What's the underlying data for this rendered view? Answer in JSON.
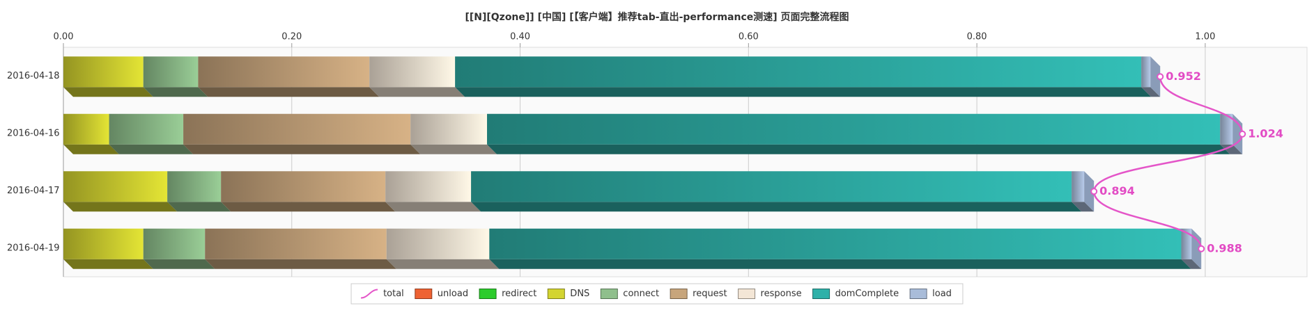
{
  "chart_data": {
    "type": "bar",
    "orientation": "horizontal",
    "stacked": true,
    "title": "[[N][Qzone]] [中国] [【客户端】推荐tab-直出-performance测速] 页面完整流程图",
    "categories": [
      "2016-04-18",
      "2016-04-16",
      "2016-04-17",
      "2016-04-19"
    ],
    "xlim": [
      0,
      1.08
    ],
    "xticks": [
      {
        "value": 0,
        "label": "0.00"
      },
      {
        "value": 0.2,
        "label": "0.20"
      },
      {
        "value": 0.4,
        "label": "0.40"
      },
      {
        "value": 0.6,
        "label": "0.60"
      },
      {
        "value": 0.8,
        "label": "0.80"
      },
      {
        "value": 1.0,
        "label": "1.00"
      }
    ],
    "grid": true,
    "legend": "bottom",
    "series": [
      {
        "name": "total",
        "type": "line",
        "color": "#e455c8",
        "values": [
          0.952,
          1.024,
          0.894,
          0.988
        ]
      },
      {
        "name": "unload",
        "color": "#ee6233",
        "values": [
          0,
          0,
          0,
          0
        ]
      },
      {
        "name": "redirect",
        "color": "#2ccc2c",
        "values": [
          0,
          0,
          0,
          0
        ]
      },
      {
        "name": "DNS",
        "color": "#d3d431",
        "values": [
          0.07,
          0.04,
          0.091,
          0.07
        ]
      },
      {
        "name": "connect",
        "color": "#8fbf8c",
        "values": [
          0.048,
          0.065,
          0.047,
          0.054
        ]
      },
      {
        "name": "request",
        "color": "#c7a57c",
        "values": [
          0.15,
          0.199,
          0.144,
          0.159
        ]
      },
      {
        "name": "response",
        "color": "#f3e6d6",
        "values": [
          0.075,
          0.067,
          0.075,
          0.09
        ]
      },
      {
        "name": "domComplete",
        "color": "#2fb1a9",
        "values": [
          0.601,
          0.642,
          0.526,
          0.606
        ]
      },
      {
        "name": "load",
        "color": "#a9bcd9",
        "values": [
          0.008,
          0.011,
          0.011,
          0.009
        ]
      }
    ]
  }
}
